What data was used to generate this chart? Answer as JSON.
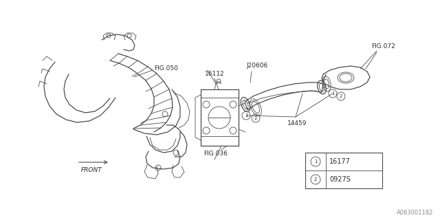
{
  "bg_color": "#ffffff",
  "line_color": "#4a4a4a",
  "text_color": "#2a2a2a",
  "watermark": "A063001182",
  "figsize": [
    6.4,
    3.2
  ],
  "dpi": 100,
  "legend": {
    "items": [
      {
        "symbol": "1",
        "code": "16177"
      },
      {
        "symbol": "2",
        "code": "0927S"
      }
    ]
  }
}
